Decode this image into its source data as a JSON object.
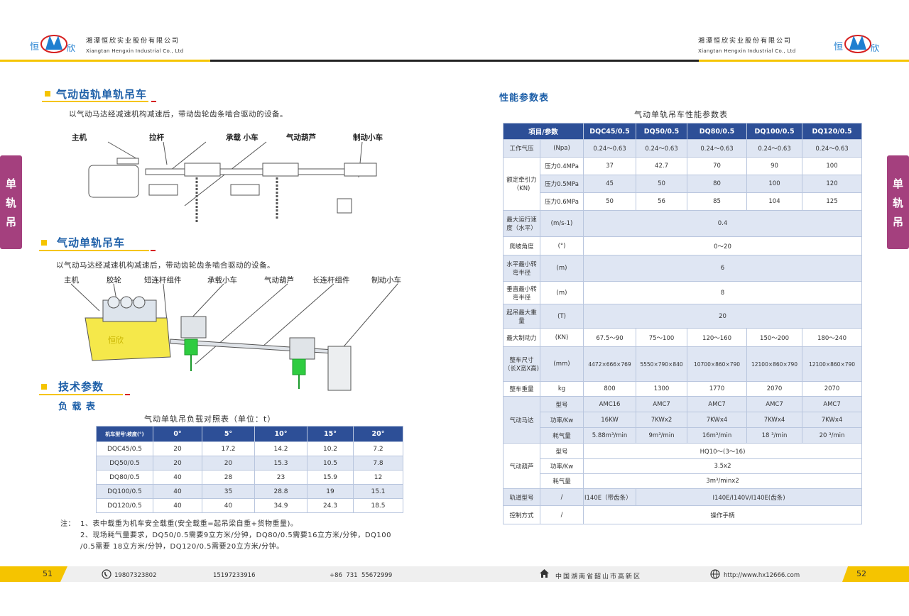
{
  "header": {
    "company_cn": "湘潭恒欣实业股份有限公司",
    "company_en": "Xiangtan Hengxin Industrial Co., Ltd",
    "logo_text": [
      "恒",
      "欣"
    ],
    "logo_mark": "®"
  },
  "side_tab": [
    "单",
    "轨",
    "吊"
  ],
  "left": {
    "section1": {
      "title": "气动齿轨单轨吊车",
      "desc": "以气动马达经减速机构减速后，带动齿轮齿条啮合驱动的设备。",
      "labels": [
        "主机",
        "拉杆",
        "承载 小车",
        "气动葫芦",
        "制动小车"
      ]
    },
    "section2": {
      "title": "气动单轨吊车",
      "desc": "以气动马达经减速机构减速后，带动齿轮齿条啮合驱动的设备。",
      "labels": [
        "主机",
        "胶轮",
        "短连杆组件",
        "承载小车",
        "气动葫芦",
        "长连杆组件",
        "制动小车"
      ],
      "machine_text": "恒欣"
    },
    "section3": {
      "title": "技术参数",
      "subtitle": "负 载 表"
    },
    "load_table": {
      "caption": "气动单轨吊负载对照表（单位：t）",
      "headers": [
        "机车型号\\坡度(°)",
        "0°",
        "5°",
        "10°",
        "15°",
        "20°"
      ],
      "rows": [
        [
          "DQC45/0.5",
          "20",
          "17.2",
          "14.2",
          "10.2",
          "7.2"
        ],
        [
          "DQ50/0.5",
          "20",
          "20",
          "15.3",
          "10.5",
          "7.8"
        ],
        [
          "DQ80/0.5",
          "40",
          "28",
          "23",
          "15.9",
          "12"
        ],
        [
          "DQ100/0.5",
          "40",
          "35",
          "28.8",
          "19",
          "15.1"
        ],
        [
          "DQ120/0.5",
          "40",
          "40",
          "34.9",
          "24.3",
          "18.5"
        ]
      ]
    },
    "notes": {
      "prefix": "注：",
      "line1": "1、表中载重为机车安全载重(安全载重=起吊梁自重+货物重量)。",
      "line2": "2、现场耗气量要求，DQ50/0.5需要9立方米/分钟，DQ80/0.5需要16立方米/分钟，DQ100",
      "line3": "/0.5需要 18立方米/分钟，DQ120/0.5需要20立方米/分钟。"
    }
  },
  "right": {
    "title": "性能参数表",
    "caption": "气动单轨吊车性能参数表",
    "headers": [
      "项目/参数",
      "DQC45/0.5",
      "DQ50/0.5",
      "DQ80/0.5",
      "DQ100/0.5",
      "DQ120/0.5"
    ],
    "r_pressure": {
      "name": "工作气压",
      "unit": "(Npa)",
      "vals": [
        "0.24～0.63",
        "0.24～0.63",
        "0.24～0.63",
        "0.24～0.63",
        "0.24～0.63"
      ]
    },
    "r_traction": {
      "name": "额定牵引力（KN)",
      "rows": [
        {
          "unit": "压力0.4MPa",
          "vals": [
            "37",
            "42.7",
            "70",
            "90",
            "100"
          ]
        },
        {
          "unit": "压力0.5MPa",
          "vals": [
            "45",
            "50",
            "80",
            "100",
            "120"
          ]
        },
        {
          "unit": "压力0.6MPa",
          "vals": [
            "50",
            "56",
            "85",
            "104",
            "125"
          ]
        }
      ]
    },
    "r_speed": {
      "name": "最大运行速度（水平）",
      "unit": "(m/s-1)",
      "val": "0.4"
    },
    "r_climb": {
      "name": "爬坡角度",
      "unit": "(°)",
      "val": "0～20"
    },
    "r_hradius": {
      "name": "水平最小转弯半径",
      "unit": "(m)",
      "val": "6"
    },
    "r_vradius": {
      "name": "垂直最小转弯半径",
      "unit": "(m)",
      "val": "8"
    },
    "r_lift": {
      "name": "起吊最大重量",
      "unit": "(T)",
      "val": "20"
    },
    "r_brake": {
      "name": "最大制动力",
      "unit": "(KN)",
      "vals": [
        "67.5～90",
        "75～100",
        "120～160",
        "150～200",
        "180～240"
      ]
    },
    "r_size": {
      "name": "整车尺寸（长X宽X高)",
      "unit": "(mm)",
      "vals": [
        "4472×666×769",
        "5550×790×840",
        "10700×860×790",
        "12100×860×790",
        "12100×860×790"
      ]
    },
    "r_weight": {
      "name": "整车重量",
      "unit": "kg",
      "vals": [
        "800",
        "1300",
        "1770",
        "2070",
        "2070"
      ]
    },
    "r_motor": {
      "name": "气动马达",
      "rows": [
        {
          "unit": "型号",
          "vals": [
            "AMC16",
            "AMC7",
            "AMC7",
            "AMC7",
            "AMC7"
          ]
        },
        {
          "unit": "功率/Kw",
          "vals": [
            "16KW",
            "7KWx2",
            "7KWx4",
            "7KWx4",
            "7KWx4"
          ]
        },
        {
          "unit": "耗气量",
          "vals": [
            "5.88m³/min",
            "9m³/min",
            "16m³/min",
            "18 ³/min",
            "20 ³/min"
          ]
        }
      ]
    },
    "r_hoist": {
      "name": "气动葫芦",
      "rows": [
        {
          "unit": "型号",
          "val": "HQ10～(3～16)"
        },
        {
          "unit": "功率/Kw",
          "val": "3.5x2"
        },
        {
          "unit": "耗气量",
          "val": "3m³/minx2"
        }
      ]
    },
    "r_track": {
      "name": "轨道型号",
      "unit": "/",
      "val1": "I140E（带齿条）",
      "val2": "I140E/I140V/I140E(齿条)"
    },
    "r_control": {
      "name": "控制方式",
      "unit": "/",
      "val": "操作手柄"
    }
  },
  "footer": {
    "page_left": "51",
    "page_right": "52",
    "phone1": "19807323802",
    "phone2": "15197233916",
    "tel": "+86  731  55672999",
    "address": "中国湖南省韶山市高新区",
    "website": "http://www.hx12666.com"
  },
  "colors": {
    "header_blue": "#2d4f97",
    "title_blue": "#1d5fa8",
    "yellow": "#f5c400",
    "side_tab": "#a4407e",
    "row_alt": "#dfe6f3"
  }
}
